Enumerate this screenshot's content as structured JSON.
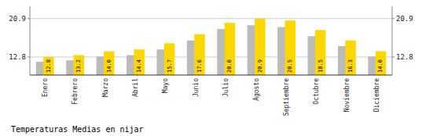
{
  "chart_data": {
    "type": "bar",
    "title": "Temperaturas Medias en nijar",
    "categories": [
      "Enero",
      "Febrero",
      "Marzo",
      "Abril",
      "Mayo",
      "Junio",
      "Julio",
      "Agosto",
      "Septiembre",
      "Octubre",
      "Noviembre",
      "Diciembre"
    ],
    "series": [
      {
        "color": "#BBBBBB",
        "values": [
          11.8,
          12.1,
          12.9,
          13.2,
          14.4,
          16.3,
          18.7,
          19.5,
          19.1,
          17.2,
          15.1,
          12.9
        ]
      },
      {
        "color": "#FFD700",
        "values": [
          12.8,
          13.2,
          14.0,
          14.4,
          15.7,
          17.6,
          20.0,
          20.9,
          20.5,
          18.5,
          16.3,
          14.0
        ],
        "data_labels": true,
        "value_labels": [
          "12.8",
          "13.2",
          "14.0",
          "14.4",
          "15.7",
          "17.6",
          "20.0",
          "20.9",
          "20.5",
          "18.5",
          "16.3",
          "14.0"
        ]
      }
    ],
    "ylim": [
      9.0,
      23.5
    ],
    "yticks": [
      12.8,
      20.9
    ],
    "y2lim": [
      9.0,
      23.5
    ],
    "y2ticks": [
      12.8,
      20.9
    ],
    "grid": true
  }
}
